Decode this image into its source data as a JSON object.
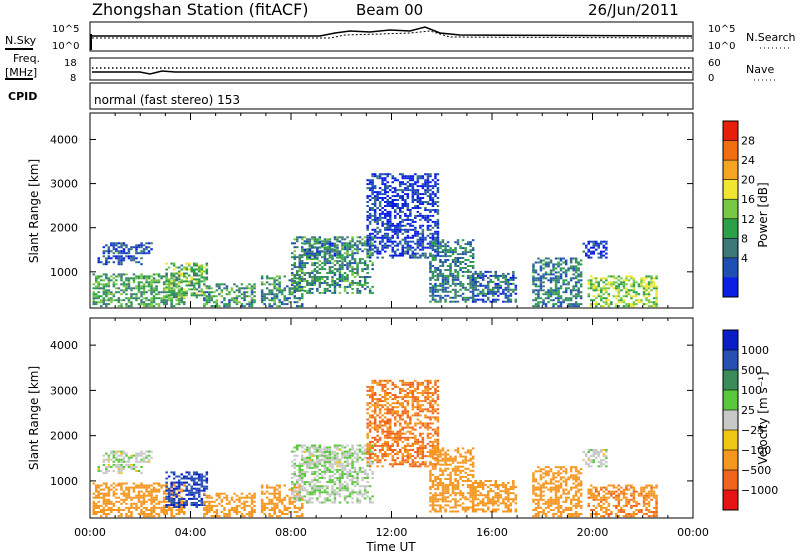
{
  "header": {
    "station": "Zhongshan Station (fitACF)",
    "beam": "Beam 00",
    "date": "26/Jun/2011"
  },
  "side_labels": {
    "nsky": "N.Sky",
    "nsearch": "N.Search",
    "freq_top": "Freq.",
    "freq_unit": "[MHz]",
    "cpid": "CPID",
    "nave": "Nave",
    "cpid_text": "normal (fast stereo) 153"
  },
  "noise_ticks": {
    "left_top": "10^5",
    "left_bottom": "10^0",
    "right_top": "10^5",
    "right_bottom": "10^0"
  },
  "freq_ticks": {
    "left_top": "18",
    "left_bottom": "8",
    "right_top": "60",
    "right_bottom": "0"
  },
  "x_axis": {
    "label": "Time UT",
    "ticks": [
      "00:00",
      "04:00",
      "08:00",
      "12:00",
      "16:00",
      "20:00",
      "00:00"
    ],
    "tick_hours": [
      0,
      4,
      8,
      12,
      16,
      20,
      24
    ],
    "range_hours": [
      0,
      24
    ]
  },
  "y_axis": {
    "label": "Slant Range [km]",
    "ticks": [
      "1000",
      "2000",
      "3000",
      "4000"
    ],
    "tick_values": [
      1000,
      2000,
      3000,
      4000
    ],
    "range_km": [
      180,
      4600
    ]
  },
  "power_bar": {
    "label": "Power [dB]",
    "ticks": [
      "4",
      "8",
      "12",
      "16",
      "20",
      "24",
      "28"
    ],
    "colors": [
      "#0a1ee6",
      "#1e50b4",
      "#3c7878",
      "#2ca048",
      "#78c846",
      "#f0e632",
      "#f5a523",
      "#f06e10",
      "#e61e0a"
    ]
  },
  "velocity_bar": {
    "label": "Velocity [m s⁻¹]",
    "ticks": [
      "1000",
      "500",
      "100",
      "25",
      "−25",
      "−100",
      "−500",
      "−1000"
    ],
    "colors": [
      "#0a1ec8",
      "#2850b4",
      "#3c8c5a",
      "#5ac83c",
      "#c8c8c8",
      "#f0c814",
      "#f5961e",
      "#f0641e",
      "#e61414"
    ]
  },
  "chart_data": {
    "type": "heatmap",
    "panels": [
      {
        "name": "power",
        "colorbar": "power_bar"
      },
      {
        "name": "velocity",
        "colorbar": "velocity_bar"
      }
    ],
    "x_unit": "hours UT",
    "y_unit": "km",
    "scatter_regions": [
      {
        "t": [
          0.1,
          3.8
        ],
        "r": [
          200,
          950
        ],
        "power": 14,
        "velocity": -120
      },
      {
        "t": [
          0.3,
          2.1
        ],
        "r": [
          1150,
          1350
        ],
        "power": 4,
        "velocity": 10
      },
      {
        "t": [
          0.5,
          2.5
        ],
        "r": [
          1400,
          1650
        ],
        "power": 6,
        "velocity": 10
      },
      {
        "t": [
          3.0,
          4.6
        ],
        "r": [
          400,
          1200
        ],
        "power": 16,
        "velocity": 600
      },
      {
        "t": [
          4.5,
          6.5
        ],
        "r": [
          200,
          700
        ],
        "power": 12,
        "velocity": -200
      },
      {
        "t": [
          6.8,
          8.4
        ],
        "r": [
          200,
          900
        ],
        "power": 12,
        "velocity": -120
      },
      {
        "t": [
          8.0,
          11.2
        ],
        "r": [
          500,
          1800
        ],
        "power": 12,
        "velocity": 20
      },
      {
        "t": [
          8.5,
          9.9
        ],
        "r": [
          1300,
          1700
        ],
        "power": 8,
        "velocity": 10
      },
      {
        "t": [
          11.0,
          13.8
        ],
        "r": [
          1300,
          3200
        ],
        "power": 4,
        "velocity": -300
      },
      {
        "t": [
          13.5,
          15.2
        ],
        "r": [
          300,
          1700
        ],
        "power": 10,
        "velocity": -150
      },
      {
        "t": [
          15.2,
          17.0
        ],
        "r": [
          300,
          1000
        ],
        "power": 8,
        "velocity": -200
      },
      {
        "t": [
          17.6,
          19.6
        ],
        "r": [
          200,
          1300
        ],
        "power": 10,
        "velocity": -200
      },
      {
        "t": [
          19.6,
          20.6
        ],
        "r": [
          1300,
          1700
        ],
        "power": 4,
        "velocity": 10
      },
      {
        "t": [
          19.8,
          22.6
        ],
        "r": [
          200,
          900
        ],
        "power": 18,
        "velocity": -250
      }
    ]
  }
}
